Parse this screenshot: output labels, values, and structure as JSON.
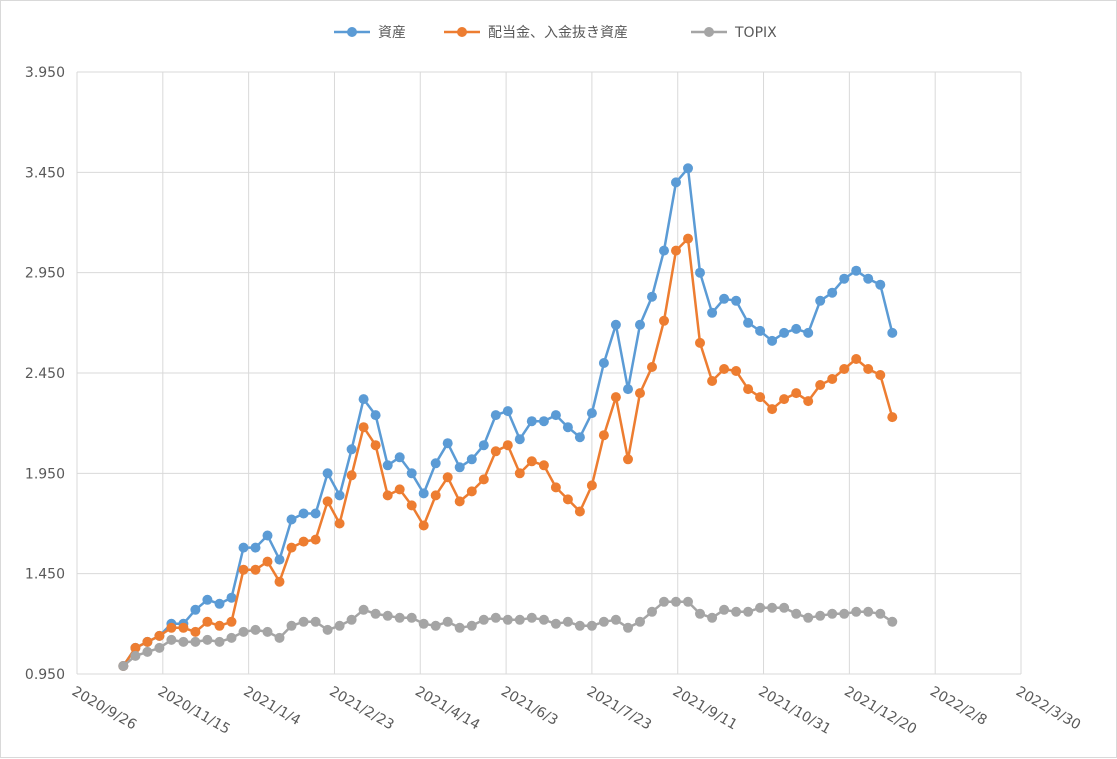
{
  "chart_data": {
    "type": "line",
    "title": "",
    "xlabel": "",
    "ylabel": "",
    "legend_position": "top",
    "grid": true,
    "ylim": [
      0.95,
      3.95
    ],
    "yticks": [
      "0.950",
      "1.450",
      "1.950",
      "2.450",
      "2.950",
      "3.450",
      "3.950"
    ],
    "ytick_values": [
      0.95,
      1.45,
      1.95,
      2.45,
      2.95,
      3.45,
      3.95
    ],
    "xlim": [
      "2020-09-26",
      "2022-03-30"
    ],
    "xticks": [
      "2020/9/26",
      "2020/11/15",
      "2021/1/4",
      "2021/2/23",
      "2021/4/14",
      "2021/6/3",
      "2021/7/23",
      "2021/9/11",
      "2021/10/31",
      "2021/12/20",
      "2022/2/8",
      "2022/3/30"
    ],
    "xtick_dates": [
      "2020-09-26",
      "2020-11-15",
      "2021-01-04",
      "2021-02-23",
      "2021-04-14",
      "2021-06-03",
      "2021-07-23",
      "2021-09-11",
      "2021-10-31",
      "2021-12-20",
      "2022-02-08",
      "2022-03-30"
    ],
    "x": [
      "2020-10-23",
      "2020-10-30",
      "2020-11-06",
      "2020-11-13",
      "2020-11-20",
      "2020-11-27",
      "2020-12-04",
      "2020-12-11",
      "2020-12-18",
      "2020-12-25",
      "2021-01-01",
      "2021-01-08",
      "2021-01-15",
      "2021-01-22",
      "2021-01-29",
      "2021-02-05",
      "2021-02-12",
      "2021-02-19",
      "2021-02-26",
      "2021-03-05",
      "2021-03-12",
      "2021-03-19",
      "2021-03-26",
      "2021-04-02",
      "2021-04-09",
      "2021-04-16",
      "2021-04-23",
      "2021-04-30",
      "2021-05-07",
      "2021-05-14",
      "2021-05-21",
      "2021-05-28",
      "2021-06-04",
      "2021-06-11",
      "2021-06-18",
      "2021-06-25",
      "2021-07-02",
      "2021-07-09",
      "2021-07-16",
      "2021-07-23",
      "2021-07-30",
      "2021-08-06",
      "2021-08-13",
      "2021-08-20",
      "2021-08-27",
      "2021-09-03",
      "2021-09-10",
      "2021-09-17",
      "2021-09-24",
      "2021-10-01",
      "2021-10-08",
      "2021-10-15",
      "2021-10-22",
      "2021-10-29",
      "2021-11-05",
      "2021-11-12",
      "2021-11-19",
      "2021-11-26",
      "2021-12-03",
      "2021-12-10",
      "2021-12-17",
      "2021-12-24",
      "2021-12-31",
      "2022-01-07",
      "2022-01-14"
    ],
    "series": [
      {
        "name": "資産",
        "color": "#5b9bd5",
        "values": [
          0.99,
          1.08,
          1.11,
          1.14,
          1.2,
          1.2,
          1.27,
          1.32,
          1.3,
          1.33,
          1.58,
          1.58,
          1.64,
          1.52,
          1.72,
          1.75,
          1.75,
          1.95,
          1.84,
          2.07,
          2.32,
          2.24,
          1.99,
          2.03,
          1.95,
          1.85,
          2.0,
          2.1,
          1.98,
          2.02,
          2.09,
          2.24,
          2.26,
          2.12,
          2.21,
          2.21,
          2.24,
          2.18,
          2.13,
          2.25,
          2.5,
          2.69,
          2.37,
          2.69,
          2.83,
          3.06,
          3.4,
          3.47,
          2.95,
          2.75,
          2.82,
          2.81,
          2.7,
          2.66,
          2.61,
          2.65,
          2.67,
          2.65,
          2.81,
          2.85,
          2.92,
          2.96,
          2.92,
          2.89,
          2.65
        ]
      },
      {
        "name": "配当金、入金抜き資産",
        "color": "#ed7d31",
        "values": [
          0.99,
          1.08,
          1.11,
          1.14,
          1.18,
          1.18,
          1.16,
          1.21,
          1.19,
          1.21,
          1.47,
          1.47,
          1.51,
          1.41,
          1.58,
          1.61,
          1.62,
          1.81,
          1.7,
          1.94,
          2.18,
          2.09,
          1.84,
          1.87,
          1.79,
          1.69,
          1.84,
          1.93,
          1.81,
          1.86,
          1.92,
          2.06,
          2.09,
          1.95,
          2.01,
          1.99,
          1.88,
          1.82,
          1.76,
          1.89,
          2.14,
          2.33,
          2.02,
          2.35,
          2.48,
          2.71,
          3.06,
          3.12,
          2.6,
          2.41,
          2.47,
          2.46,
          2.37,
          2.33,
          2.27,
          2.32,
          2.35,
          2.31,
          2.39,
          2.42,
          2.47,
          2.52,
          2.47,
          2.44,
          2.23
        ]
      },
      {
        "name": "TOPIX",
        "color": "#a5a5a5",
        "values": [
          0.99,
          1.04,
          1.06,
          1.08,
          1.12,
          1.11,
          1.11,
          1.12,
          1.11,
          1.13,
          1.16,
          1.17,
          1.16,
          1.13,
          1.19,
          1.21,
          1.21,
          1.17,
          1.19,
          1.22,
          1.27,
          1.25,
          1.24,
          1.23,
          1.23,
          1.2,
          1.19,
          1.21,
          1.18,
          1.19,
          1.22,
          1.23,
          1.22,
          1.22,
          1.23,
          1.22,
          1.2,
          1.21,
          1.19,
          1.19,
          1.21,
          1.22,
          1.18,
          1.21,
          1.26,
          1.31,
          1.31,
          1.31,
          1.25,
          1.23,
          1.27,
          1.26,
          1.26,
          1.28,
          1.28,
          1.28,
          1.25,
          1.23,
          1.24,
          1.25,
          1.25,
          1.26,
          1.26,
          1.25,
          1.21
        ]
      }
    ]
  }
}
